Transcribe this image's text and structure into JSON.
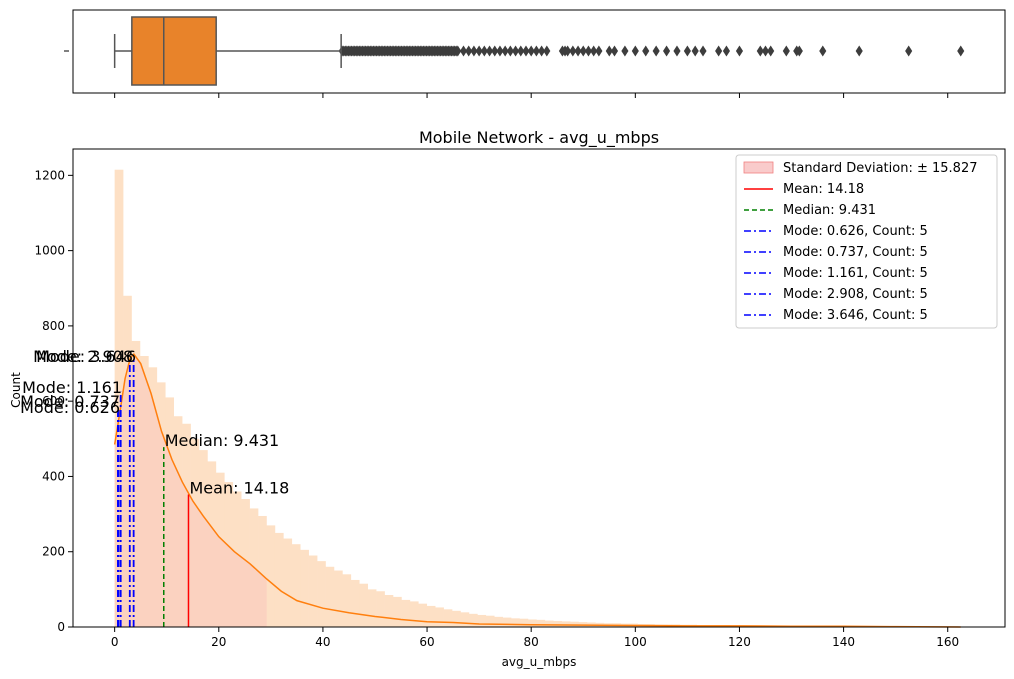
{
  "chart_data": [
    {
      "type": "box",
      "orientation": "horizontal",
      "ytick_label": "",
      "xlim": [
        -8,
        171
      ],
      "q1": 3.3,
      "median": 9.431,
      "q3": 19.5,
      "whisker_low": 0.0,
      "whisker_high": 43.5,
      "box_color": "#e8832a",
      "dense_outlier_range": [
        43.5,
        66
      ],
      "outliers": [
        67,
        68,
        69,
        70,
        71,
        72,
        73,
        74,
        75,
        76,
        77,
        78,
        79,
        80,
        81,
        82,
        83,
        86,
        86.5,
        87,
        88,
        89,
        90,
        91,
        92,
        93,
        95,
        96,
        98,
        100,
        102,
        104,
        106,
        108,
        110,
        111.5,
        113,
        116,
        117.5,
        120,
        124,
        125,
        126,
        129,
        131,
        131.5,
        136,
        143,
        152.5,
        162.5
      ]
    },
    {
      "type": "histogram",
      "title": "Mobile Network - avg_u_mbps",
      "xlabel": "avg_u_mbps",
      "ylabel": "Count",
      "xlim": [
        -8,
        171
      ],
      "ylim": [
        0,
        1270
      ],
      "xticks": [
        0,
        20,
        40,
        60,
        80,
        100,
        120,
        140,
        160
      ],
      "yticks": [
        0,
        200,
        400,
        600,
        800,
        1000,
        1200
      ],
      "bin_width": 1.62,
      "bins_start": 0,
      "counts": [
        1215,
        880,
        760,
        720,
        690,
        650,
        610,
        560,
        540,
        500,
        470,
        440,
        410,
        385,
        360,
        340,
        315,
        295,
        270,
        250,
        235,
        220,
        205,
        190,
        175,
        160,
        150,
        140,
        125,
        115,
        100,
        95,
        85,
        80,
        72,
        68,
        62,
        56,
        52,
        47,
        43,
        39,
        35,
        32,
        30,
        27,
        25,
        23,
        22,
        20,
        19,
        17,
        16,
        15,
        14,
        13,
        12,
        11,
        10,
        10,
        9,
        9,
        8,
        8,
        7,
        7,
        7,
        6,
        6,
        5,
        5,
        5,
        5,
        4,
        4,
        4,
        4,
        4,
        3,
        3,
        3,
        3,
        3,
        3,
        3,
        3,
        3,
        2,
        2,
        2,
        2,
        2,
        2,
        2,
        2,
        2,
        2,
        2,
        2,
        2
      ],
      "kde": [
        [
          0,
          485
        ],
        [
          1,
          570
        ],
        [
          2,
          660
        ],
        [
          3,
          715
        ],
        [
          3.7,
          725
        ],
        [
          5,
          700
        ],
        [
          7,
          620
        ],
        [
          9,
          520
        ],
        [
          11,
          445
        ],
        [
          13,
          385
        ],
        [
          15,
          335
        ],
        [
          17,
          295
        ],
        [
          20,
          240
        ],
        [
          23,
          200
        ],
        [
          26,
          168
        ],
        [
          29,
          130
        ],
        [
          32,
          95
        ],
        [
          35,
          70
        ],
        [
          40,
          50
        ],
        [
          45,
          38
        ],
        [
          50,
          28
        ],
        [
          55,
          20
        ],
        [
          60,
          14
        ],
        [
          65,
          12
        ],
        [
          70,
          8
        ],
        [
          80,
          6
        ],
        [
          90,
          5
        ],
        [
          100,
          4
        ],
        [
          110,
          3
        ],
        [
          120,
          3
        ],
        [
          130,
          2
        ],
        [
          140,
          2
        ],
        [
          150,
          1
        ],
        [
          162.5,
          0
        ]
      ],
      "hist_color": "#fde0c5",
      "kde_color": "#ff7f0e",
      "std_band": {
        "label": "Standard Deviation: ± 15.827",
        "low": 0,
        "high": 29.2,
        "color": "#f7b5b5"
      },
      "mean": {
        "value": 14.18,
        "label": "Mean: 14.18",
        "annotation": "Mean: 14.18",
        "color": "#ff0000"
      },
      "median": {
        "value": 9.431,
        "label": "Median: 9.431",
        "annotation": "Median: 9.431",
        "color": "#008000"
      },
      "modes": [
        {
          "value": 0.626,
          "label": "Mode: 0.626, Count: 5",
          "annotation": "Mode: 0.626",
          "y": 570
        },
        {
          "value": 0.737,
          "label": "Mode: 0.737, Count: 5",
          "annotation": "Mode: 0.737",
          "y": 580
        },
        {
          "value": 1.161,
          "label": "Mode: 1.161, Count: 5",
          "annotation": "Mode: 1.161",
          "y": 625
        },
        {
          "value": 2.908,
          "label": "Mode: 2.908, Count: 5",
          "annotation": "Mode: 2.908",
          "y": 705
        },
        {
          "value": 3.646,
          "label": "Mode: 3.646, Count: 5",
          "annotation": "Mode: 3.646",
          "y": 710
        }
      ],
      "mode_color": "#0000ff",
      "legend_position": "top-right"
    }
  ]
}
